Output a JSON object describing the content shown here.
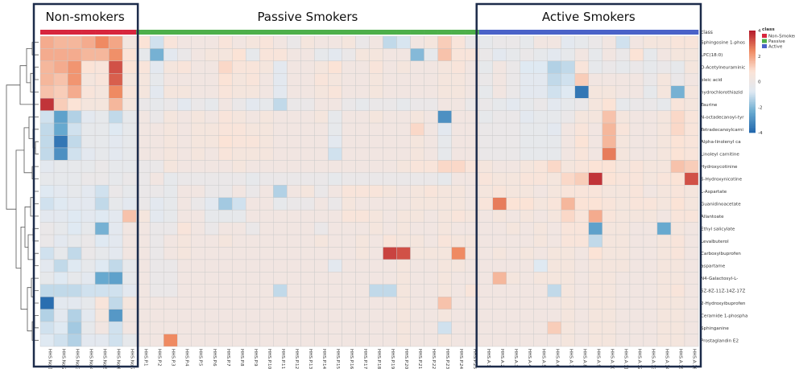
{
  "chart_data": {
    "type": "heatmap",
    "group_titles": [
      "Non-smokers",
      "Passive Smokers",
      "Active Smokers"
    ],
    "annotation_track_label": "class",
    "legend_class": {
      "title": "class",
      "entries": [
        {
          "name": "Non-Smoker",
          "color": "#d7263d"
        },
        {
          "name": "Passive",
          "color": "#4daf4a"
        },
        {
          "name": "Active",
          "color": "#4a62c8"
        }
      ]
    },
    "color_scale": {
      "min": -4,
      "max": 4,
      "ticks": [
        "4",
        "2",
        "0",
        "-2",
        "-4"
      ],
      "stops": [
        "#b2182b",
        "#ef8a62",
        "#fbe3d6",
        "#dfe9f2",
        "#67a9cf",
        "#2166ac"
      ]
    },
    "rows": [
      "Sphingosine 1-phos",
      "LPC(18:0)",
      "O-Acetylneuraminic",
      "oleic acid",
      "hydrochlorothiazid",
      "Taurine",
      "N-octadecanoyl-tyr",
      "Tetradecanoylcarni",
      "Alpha-linolenyl ca",
      "Linoleyl carnitine",
      "Hydroxycotinine",
      "6-Hydroxynicotine",
      "L-Aspartate",
      "Guanidinoacetate",
      "Allantoate",
      "Ethyl salicylate",
      "Levalbuterol",
      "Carboxyibuprofen",
      "aspartame",
      "N4-Galactosyl-L-",
      "5Z-8Z-11Z-14Z-17Z",
      "2-Hydroxyibuprofen",
      "Ceramide 1-phospha",
      "Sphinganine",
      "Prostaglandin E2"
    ],
    "columns": [
      "HHS.No.1",
      "HHS.No.2",
      "HHS.No.3",
      "HHS.No.4",
      "HHS.No.5",
      "HHS.No.6",
      "HHS.No.7",
      "HHS.P.1",
      "HHS.P.2",
      "HHS.P.3",
      "HHS.P.4",
      "HHS.P.5",
      "HHS.P.6",
      "HHS.P.7",
      "HHS.P.8",
      "HHS.P.9",
      "HHS.P.10",
      "HHS.P.11",
      "HHS.P.12",
      "HHS.P.13",
      "HHS.P.14",
      "HHS.P.15",
      "HHS.P.16",
      "HHS.P.17",
      "HHS.P.18",
      "HHS.P.19",
      "HHS.P.20",
      "HHS.P.21",
      "HHS.P.22",
      "HHS.P.23",
      "HHS.P.24",
      "HHS.P.25",
      "HHS.A.1",
      "HHS.A.2",
      "HHS.A.3",
      "HHS.A.4",
      "HHS.A.5",
      "HHS.A.6",
      "HHS.A.7",
      "HHS.A.8",
      "HHS.A.9",
      "HHS.A.10",
      "HHS.A.11",
      "HHS.A.12",
      "HHS.A.13",
      "HHS.A.14",
      "HHS.A.15",
      "HHS.A.16"
    ],
    "column_class": [
      "Non-Smoker",
      "Non-Smoker",
      "Non-Smoker",
      "Non-Smoker",
      "Non-Smoker",
      "Non-Smoker",
      "Non-Smoker",
      "Passive",
      "Passive",
      "Passive",
      "Passive",
      "Passive",
      "Passive",
      "Passive",
      "Passive",
      "Passive",
      "Passive",
      "Passive",
      "Passive",
      "Passive",
      "Passive",
      "Passive",
      "Passive",
      "Passive",
      "Passive",
      "Passive",
      "Passive",
      "Passive",
      "Passive",
      "Passive",
      "Passive",
      "Passive",
      "Active",
      "Active",
      "Active",
      "Active",
      "Active",
      "Active",
      "Active",
      "Active",
      "Active",
      "Active",
      "Active",
      "Active",
      "Active",
      "Active",
      "Active",
      "Active"
    ],
    "values": [
      [
        1.8,
        1.6,
        1.6,
        1.8,
        2.4,
        1.9,
        0.3,
        0.8,
        -1.0,
        0.6,
        0.2,
        0.2,
        0.2,
        0.6,
        0.2,
        0.4,
        0.6,
        0.2,
        -0.2,
        0.4,
        0.2,
        0.2,
        0.4,
        -0.2,
        0.2,
        -1.2,
        -0.9,
        0.2,
        0.4,
        1.2,
        0.6,
        -0.2,
        -0.4,
        -0.2,
        -0.2,
        -0.4,
        0.2,
        0.2,
        -0.6,
        -0.4,
        -0.2,
        0.2,
        -1.0,
        0.2,
        0.4,
        0.4,
        0.6,
        0.6
      ],
      [
        1.8,
        1.8,
        1.8,
        1.6,
        1.6,
        2.3,
        0.8,
        -0.4,
        -2.2,
        -0.6,
        -0.2,
        0.2,
        0.4,
        0.4,
        0.8,
        -0.4,
        0.6,
        0.6,
        0.2,
        0.2,
        -0.4,
        -0.6,
        -0.2,
        0.4,
        0.4,
        0.2,
        0.2,
        -2.0,
        -0.4,
        1.4,
        0.6,
        0.6,
        -0.2,
        -0.6,
        -0.4,
        -0.2,
        -0.4,
        -0.6,
        -0.4,
        0.2,
        -0.4,
        0.2,
        -0.2,
        0.8,
        -0.4,
        0.2,
        0.4,
        0.4
      ],
      [
        1.6,
        1.8,
        2.2,
        0.8,
        0.6,
        3.2,
        0.8,
        0.6,
        -0.6,
        0.4,
        0.6,
        0.2,
        0.2,
        1.0,
        0.6,
        0.6,
        0.4,
        -0.6,
        0.2,
        0.2,
        0.4,
        0.8,
        0.2,
        0.2,
        0.6,
        0.2,
        0.4,
        0.2,
        0.2,
        0.4,
        0.6,
        0.2,
        -0.4,
        0.2,
        -0.2,
        -0.8,
        -0.8,
        -1.4,
        -1.2,
        0.6,
        -0.4,
        -0.2,
        -0.4,
        -0.2,
        -0.4,
        -0.2,
        -0.4,
        0.4
      ],
      [
        1.6,
        1.4,
        2.2,
        0.4,
        0.6,
        3.0,
        0.4,
        0.4,
        -0.4,
        0.2,
        0.2,
        0.2,
        0.2,
        0.8,
        0.4,
        0.6,
        0.2,
        -0.6,
        0.2,
        0.2,
        0.6,
        0.4,
        0.2,
        0.2,
        0.4,
        0.2,
        0.2,
        0.2,
        0.2,
        0.4,
        0.4,
        0.2,
        -0.2,
        0.2,
        -0.2,
        -0.6,
        -0.6,
        -1.2,
        -1.0,
        1.2,
        0.2,
        0.2,
        0.2,
        0.2,
        -0.2,
        0.4,
        -0.2,
        0.2
      ],
      [
        1.4,
        1.2,
        1.8,
        0.6,
        0.4,
        2.4,
        0.6,
        0.4,
        -0.6,
        0.4,
        0.4,
        0.2,
        0.2,
        0.6,
        0.4,
        0.4,
        0.2,
        -0.6,
        0.2,
        0.2,
        0.4,
        0.6,
        0.2,
        0.2,
        0.4,
        0.2,
        0.2,
        0.2,
        0.2,
        0.4,
        0.4,
        0.2,
        -0.4,
        0.2,
        -0.2,
        -0.6,
        -0.6,
        -1.0,
        -0.8,
        -3.6,
        0.4,
        0.4,
        0.2,
        0.2,
        -0.4,
        0.4,
        -2.2,
        0.4
      ],
      [
        3.6,
        1.2,
        0.8,
        0.4,
        0.4,
        1.6,
        0.4,
        -0.2,
        -0.4,
        -0.2,
        -0.6,
        -0.2,
        -0.4,
        0.2,
        -0.2,
        -0.6,
        -0.4,
        -1.2,
        -0.2,
        -0.2,
        0.2,
        0.2,
        -0.2,
        -0.4,
        -0.2,
        -0.2,
        -0.4,
        -0.2,
        -0.2,
        0.2,
        0.2,
        -0.2,
        -0.2,
        -0.4,
        -0.6,
        -0.4,
        -0.2,
        -0.6,
        -0.4,
        -0.2,
        0.4,
        0.8,
        -0.4,
        -0.2,
        -0.2,
        -0.4,
        0.6,
        0.4
      ],
      [
        -1.0,
        -2.6,
        -1.4,
        -0.6,
        -0.4,
        -1.2,
        -0.4,
        0.2,
        -0.2,
        0.4,
        0.2,
        0.4,
        0.2,
        0.6,
        0.4,
        0.2,
        0.4,
        0.2,
        0.2,
        0.2,
        0.4,
        -0.4,
        0.2,
        0.2,
        0.4,
        0.2,
        0.2,
        0.4,
        0.2,
        -3.0,
        0.2,
        0.2,
        -0.4,
        -0.2,
        -0.2,
        -0.6,
        -0.4,
        -0.4,
        -0.2,
        0.4,
        0.4,
        1.4,
        0.4,
        0.2,
        0.2,
        0.4,
        1.0,
        0.6
      ],
      [
        -1.2,
        -2.4,
        -1.0,
        -0.4,
        -0.4,
        -0.8,
        -0.4,
        0.2,
        0.2,
        0.4,
        0.2,
        0.4,
        0.4,
        0.6,
        0.6,
        0.4,
        0.4,
        0.2,
        0.2,
        0.2,
        0.2,
        -0.4,
        0.2,
        0.2,
        0.2,
        0.2,
        0.2,
        1.0,
        0.2,
        -0.6,
        0.2,
        0.2,
        -0.2,
        -0.2,
        -0.2,
        -0.4,
        -0.4,
        -0.6,
        0.2,
        0.6,
        0.2,
        1.6,
        0.6,
        0.2,
        0.2,
        0.4,
        1.0,
        0.6
      ],
      [
        -1.2,
        -3.6,
        -1.2,
        -0.4,
        -0.4,
        -0.6,
        -0.4,
        0.2,
        0.2,
        0.4,
        0.2,
        0.4,
        0.4,
        0.8,
        0.6,
        0.6,
        0.4,
        0.2,
        0.2,
        0.2,
        0.2,
        -0.6,
        0.2,
        0.2,
        0.2,
        0.2,
        0.2,
        0.4,
        0.2,
        -0.4,
        0.2,
        0.2,
        -0.2,
        -0.2,
        -0.2,
        -0.4,
        -0.4,
        -0.4,
        0.2,
        0.8,
        0.2,
        1.6,
        0.4,
        0.2,
        0.2,
        0.4,
        0.8,
        0.6
      ],
      [
        -1.2,
        -3.0,
        -1.0,
        -0.6,
        -0.4,
        -0.6,
        -0.4,
        0.2,
        0.2,
        0.4,
        0.2,
        0.4,
        0.2,
        0.6,
        0.4,
        0.4,
        0.4,
        0.2,
        0.2,
        0.2,
        0.2,
        -1.0,
        0.2,
        0.2,
        0.2,
        0.2,
        0.2,
        0.4,
        0.2,
        -0.4,
        0.2,
        0.2,
        -0.2,
        -0.2,
        -0.2,
        -0.4,
        -0.4,
        -0.4,
        0.2,
        0.6,
        0.2,
        2.6,
        0.4,
        0.2,
        0.2,
        0.4,
        0.8,
        0.6
      ],
      [
        -0.6,
        -0.4,
        -0.4,
        -0.4,
        -0.2,
        -0.4,
        -0.4,
        -0.2,
        -0.2,
        0.4,
        0.2,
        0.2,
        0.2,
        0.2,
        0.4,
        0.2,
        0.2,
        0.2,
        0.2,
        0.2,
        0.2,
        0.2,
        0.2,
        0.2,
        0.2,
        0.2,
        0.4,
        0.6,
        0.6,
        1.0,
        1.0,
        0.6,
        0.4,
        0.2,
        0.2,
        0.4,
        0.6,
        1.0,
        0.4,
        0.6,
        0.8,
        0.8,
        0.4,
        0.6,
        0.4,
        0.4,
        1.4,
        1.2
      ],
      [
        -0.4,
        -0.4,
        -0.4,
        -0.2,
        -0.2,
        -0.4,
        -0.2,
        -0.2,
        0.2,
        -0.4,
        -0.2,
        -0.2,
        -0.2,
        -0.2,
        -0.2,
        -0.4,
        -0.2,
        -0.2,
        -0.2,
        -0.2,
        -0.2,
        -0.4,
        -0.2,
        -0.2,
        -0.2,
        -0.2,
        -0.2,
        -0.2,
        -0.2,
        -0.4,
        0.2,
        0.2,
        0.6,
        0.4,
        0.4,
        0.6,
        0.6,
        0.4,
        1.0,
        1.2,
        3.6,
        0.8,
        0.6,
        0.6,
        0.4,
        0.6,
        0.8,
        3.2
      ],
      [
        -0.8,
        -0.6,
        -0.4,
        -0.6,
        -1.0,
        -0.2,
        -0.4,
        -0.2,
        -0.2,
        -0.4,
        0.2,
        0.2,
        -0.2,
        -0.2,
        0.2,
        -0.2,
        0.2,
        -1.4,
        0.2,
        0.4,
        -0.2,
        0.2,
        0.6,
        0.6,
        0.6,
        0.4,
        0.2,
        0.4,
        0.6,
        0.4,
        0.4,
        0.2,
        0.4,
        0.6,
        0.4,
        0.4,
        0.2,
        0.4,
        0.6,
        0.6,
        0.6,
        0.4,
        0.4,
        0.6,
        0.2,
        0.4,
        0.6,
        0.4
      ],
      [
        -1.0,
        -0.8,
        -0.6,
        -0.6,
        -1.2,
        -0.4,
        -0.6,
        -0.2,
        -0.6,
        -0.4,
        0.2,
        -0.2,
        -0.6,
        -1.6,
        -1.0,
        0.2,
        0.2,
        -0.4,
        -0.2,
        -0.2,
        0.2,
        -0.2,
        0.4,
        0.2,
        0.2,
        0.2,
        0.2,
        0.4,
        0.4,
        0.4,
        0.4,
        0.2,
        0.6,
        2.6,
        0.8,
        0.8,
        0.4,
        0.6,
        1.6,
        0.8,
        0.8,
        0.6,
        0.4,
        0.6,
        0.6,
        0.4,
        0.8,
        0.4
      ],
      [
        -0.6,
        -0.6,
        -0.8,
        -0.6,
        -0.8,
        -0.6,
        1.4,
        0.4,
        -0.6,
        -0.4,
        0.2,
        0.2,
        -0.4,
        -0.4,
        -0.4,
        0.2,
        0.2,
        0.2,
        0.2,
        0.2,
        0.2,
        0.2,
        0.6,
        0.6,
        0.4,
        0.2,
        0.4,
        0.4,
        0.2,
        0.4,
        0.6,
        0.4,
        0.2,
        0.4,
        0.2,
        0.4,
        0.2,
        0.4,
        1.0,
        0.6,
        1.8,
        0.6,
        0.4,
        0.4,
        0.4,
        0.2,
        0.6,
        0.6
      ],
      [
        -0.2,
        -0.4,
        -0.8,
        -0.4,
        -2.2,
        -0.6,
        0.2,
        0.2,
        -0.2,
        -0.2,
        0.6,
        0.2,
        -0.2,
        0.2,
        0.2,
        -0.2,
        0.2,
        0.2,
        0.2,
        0.2,
        -0.2,
        0.2,
        0.2,
        0.2,
        0.4,
        0.2,
        0.4,
        0.2,
        0.2,
        0.4,
        0.2,
        0.2,
        0.2,
        0.2,
        0.4,
        0.2,
        0.4,
        0.2,
        0.6,
        0.6,
        -2.6,
        0.4,
        0.4,
        0.2,
        0.2,
        -2.4,
        0.4,
        0.2
      ],
      [
        -0.2,
        -0.6,
        -0.4,
        -0.2,
        -0.8,
        -0.6,
        0.2,
        0.2,
        -0.2,
        0.2,
        0.4,
        0.2,
        0.2,
        0.4,
        0.2,
        0.2,
        0.2,
        0.2,
        0.2,
        0.2,
        0.4,
        0.2,
        0.2,
        0.4,
        0.2,
        0.6,
        0.4,
        0.4,
        0.2,
        0.6,
        0.4,
        0.4,
        0.2,
        0.2,
        0.2,
        0.2,
        0.4,
        0.2,
        0.6,
        0.6,
        -1.2,
        0.4,
        0.4,
        0.2,
        0.2,
        0.4,
        0.6,
        0.2
      ],
      [
        -1.0,
        -0.4,
        -1.2,
        -0.2,
        -0.4,
        -0.6,
        0.2,
        0.2,
        -0.2,
        0.2,
        0.4,
        0.2,
        0.2,
        0.2,
        0.2,
        0.2,
        0.2,
        0.2,
        0.2,
        0.2,
        0.2,
        0.2,
        0.2,
        0.4,
        0.2,
        3.4,
        3.2,
        0.4,
        0.4,
        0.4,
        2.4,
        0.4,
        0.2,
        0.4,
        0.2,
        0.4,
        0.2,
        0.4,
        0.4,
        0.2,
        0.8,
        0.4,
        0.4,
        0.2,
        0.2,
        0.4,
        0.6,
        0.2
      ],
      [
        -0.6,
        -1.2,
        -0.8,
        -0.4,
        -0.8,
        -1.2,
        -0.4,
        0.2,
        -0.2,
        -0.2,
        0.2,
        0.2,
        0.2,
        0.2,
        0.2,
        0.2,
        0.2,
        0.2,
        0.2,
        0.2,
        0.2,
        -0.6,
        0.2,
        0.2,
        0.2,
        0.2,
        0.4,
        0.2,
        0.2,
        0.4,
        0.4,
        0.2,
        0.2,
        0.2,
        0.2,
        0.2,
        -0.8,
        0.4,
        0.4,
        0.2,
        0.4,
        0.4,
        0.4,
        0.2,
        0.2,
        0.4,
        0.4,
        0.2
      ],
      [
        -0.4,
        -0.8,
        -0.4,
        -0.6,
        -2.4,
        -2.6,
        -0.4,
        0.2,
        -0.2,
        -0.2,
        0.2,
        0.2,
        0.2,
        0.2,
        0.2,
        0.2,
        0.2,
        0.2,
        0.2,
        0.2,
        0.2,
        0.2,
        0.2,
        0.2,
        0.2,
        0.2,
        0.4,
        0.2,
        0.2,
        0.4,
        0.2,
        0.2,
        0.2,
        1.6,
        0.4,
        0.2,
        0.4,
        0.4,
        0.4,
        0.2,
        0.4,
        0.4,
        0.2,
        0.2,
        0.2,
        0.4,
        0.4,
        0.2
      ],
      [
        -1.2,
        -1.2,
        -1.2,
        -1.0,
        -1.0,
        -1.0,
        -0.6,
        0.2,
        -0.2,
        -0.2,
        0.2,
        0.2,
        0.2,
        0.2,
        0.2,
        0.2,
        0.2,
        -1.2,
        0.2,
        0.2,
        0.2,
        0.2,
        0.2,
        0.2,
        -1.2,
        -1.2,
        0.4,
        0.2,
        0.2,
        0.4,
        0.2,
        0.6,
        0.2,
        0.2,
        0.2,
        0.2,
        0.2,
        -1.2,
        0.4,
        0.2,
        0.4,
        0.4,
        0.2,
        0.2,
        0.2,
        0.4,
        0.6,
        0.2
      ],
      [
        -3.8,
        -0.6,
        -0.6,
        -0.4,
        0.6,
        -1.2,
        0.4,
        0.2,
        0.2,
        0.2,
        0.2,
        0.2,
        0.2,
        0.2,
        0.2,
        0.2,
        0.2,
        0.2,
        0.2,
        0.2,
        0.2,
        0.2,
        0.2,
        0.2,
        0.2,
        0.2,
        0.4,
        0.2,
        0.2,
        1.4,
        0.2,
        0.2,
        0.2,
        0.2,
        0.2,
        0.2,
        0.2,
        0.2,
        0.4,
        0.2,
        0.4,
        0.4,
        0.2,
        0.2,
        0.2,
        0.4,
        0.4,
        0.2
      ],
      [
        -1.4,
        -0.6,
        -1.4,
        -0.6,
        0.4,
        -2.8,
        0.2,
        0.2,
        0.2,
        0.2,
        0.2,
        0.2,
        0.2,
        0.2,
        0.2,
        0.2,
        0.2,
        0.2,
        0.2,
        0.2,
        0.2,
        0.2,
        0.2,
        0.2,
        0.2,
        0.2,
        0.4,
        0.2,
        0.2,
        0.4,
        0.2,
        0.2,
        0.2,
        0.2,
        0.2,
        0.2,
        0.2,
        0.2,
        0.4,
        0.2,
        0.4,
        0.4,
        0.2,
        0.2,
        0.2,
        0.4,
        0.4,
        0.2
      ],
      [
        -1.0,
        -0.8,
        -1.6,
        -0.4,
        0.2,
        -1.0,
        0.2,
        0.2,
        0.2,
        0.2,
        0.2,
        0.2,
        0.2,
        0.2,
        0.2,
        0.2,
        0.2,
        0.2,
        0.2,
        0.2,
        0.2,
        0.2,
        0.2,
        0.2,
        0.2,
        0.2,
        0.4,
        0.2,
        0.2,
        -1.0,
        0.2,
        0.2,
        0.2,
        0.2,
        0.2,
        0.2,
        0.2,
        1.2,
        0.4,
        0.2,
        0.4,
        0.4,
        0.2,
        0.2,
        0.2,
        0.4,
        0.4,
        0.2
      ],
      [
        -0.8,
        -1.0,
        -1.4,
        -0.6,
        -0.6,
        -1.0,
        -0.4,
        0.2,
        0.2,
        2.4,
        0.2,
        0.2,
        0.2,
        0.2,
        0.2,
        0.2,
        0.2,
        0.2,
        0.2,
        0.2,
        0.2,
        0.2,
        0.2,
        0.2,
        0.2,
        0.2,
        0.4,
        0.2,
        0.2,
        0.4,
        0.2,
        0.2,
        0.2,
        0.2,
        0.2,
        0.2,
        0.2,
        0.2,
        0.4,
        0.2,
        0.4,
        0.4,
        0.2,
        0.2,
        0.2,
        0.4,
        0.4,
        0.2
      ]
    ]
  }
}
